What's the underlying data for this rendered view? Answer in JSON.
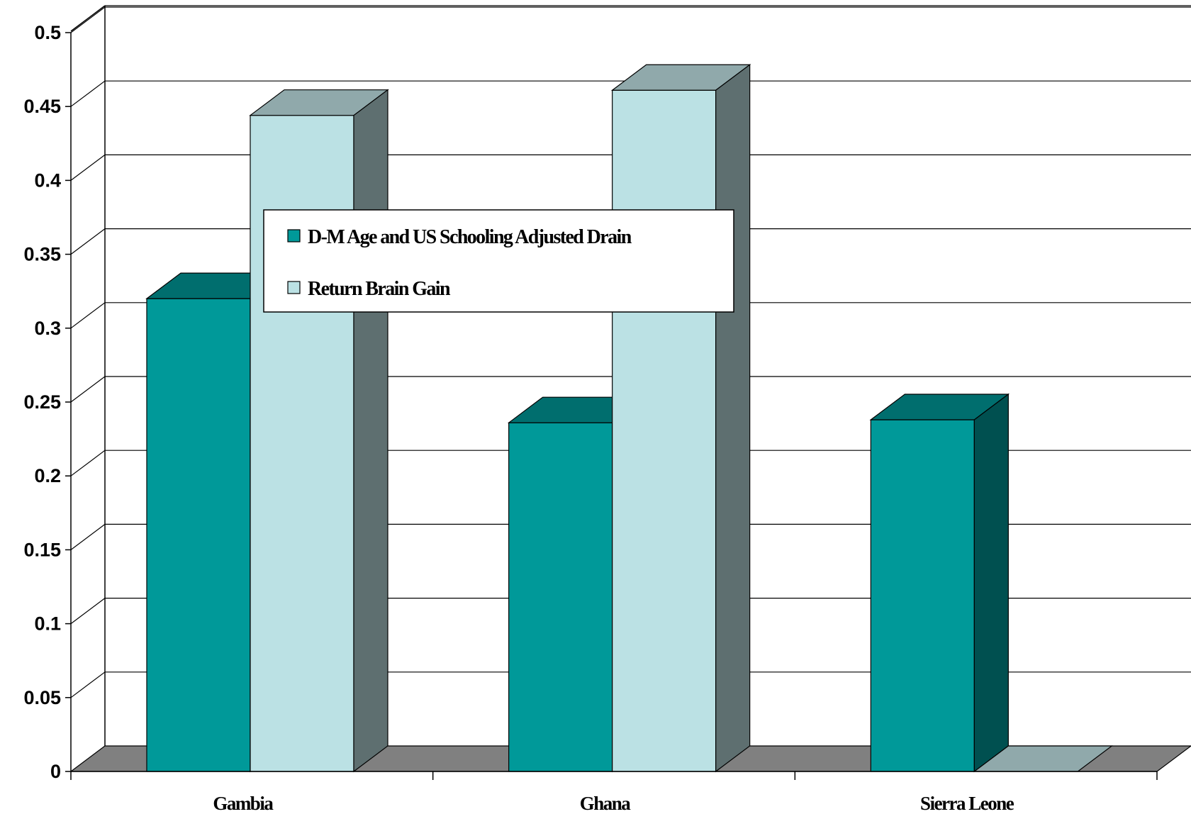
{
  "chart_data": {
    "type": "bar",
    "style": "3d-clustered-column",
    "categories": [
      "Gambia",
      "Ghana",
      "Sierra Leone"
    ],
    "series": [
      {
        "name": "D-M Age and US Schooling Adjusted Drain",
        "values": [
          0.32,
          0.236,
          0.238
        ],
        "color": "#009999"
      },
      {
        "name": "Return Brain Gain",
        "values": [
          0.444,
          0.461,
          0
        ],
        "color": "#bbe1e4"
      }
    ],
    "y_ticks": [
      "0",
      "0.05",
      "0.1",
      "0.15",
      "0.2",
      "0.25",
      "0.3",
      "0.35",
      "0.4",
      "0.45",
      "0.5"
    ],
    "ylim": [
      0,
      0.5
    ],
    "grid": true,
    "legend_position": "center-left",
    "floor_color": "#808080",
    "title": "",
    "xlabel": "",
    "ylabel": ""
  }
}
